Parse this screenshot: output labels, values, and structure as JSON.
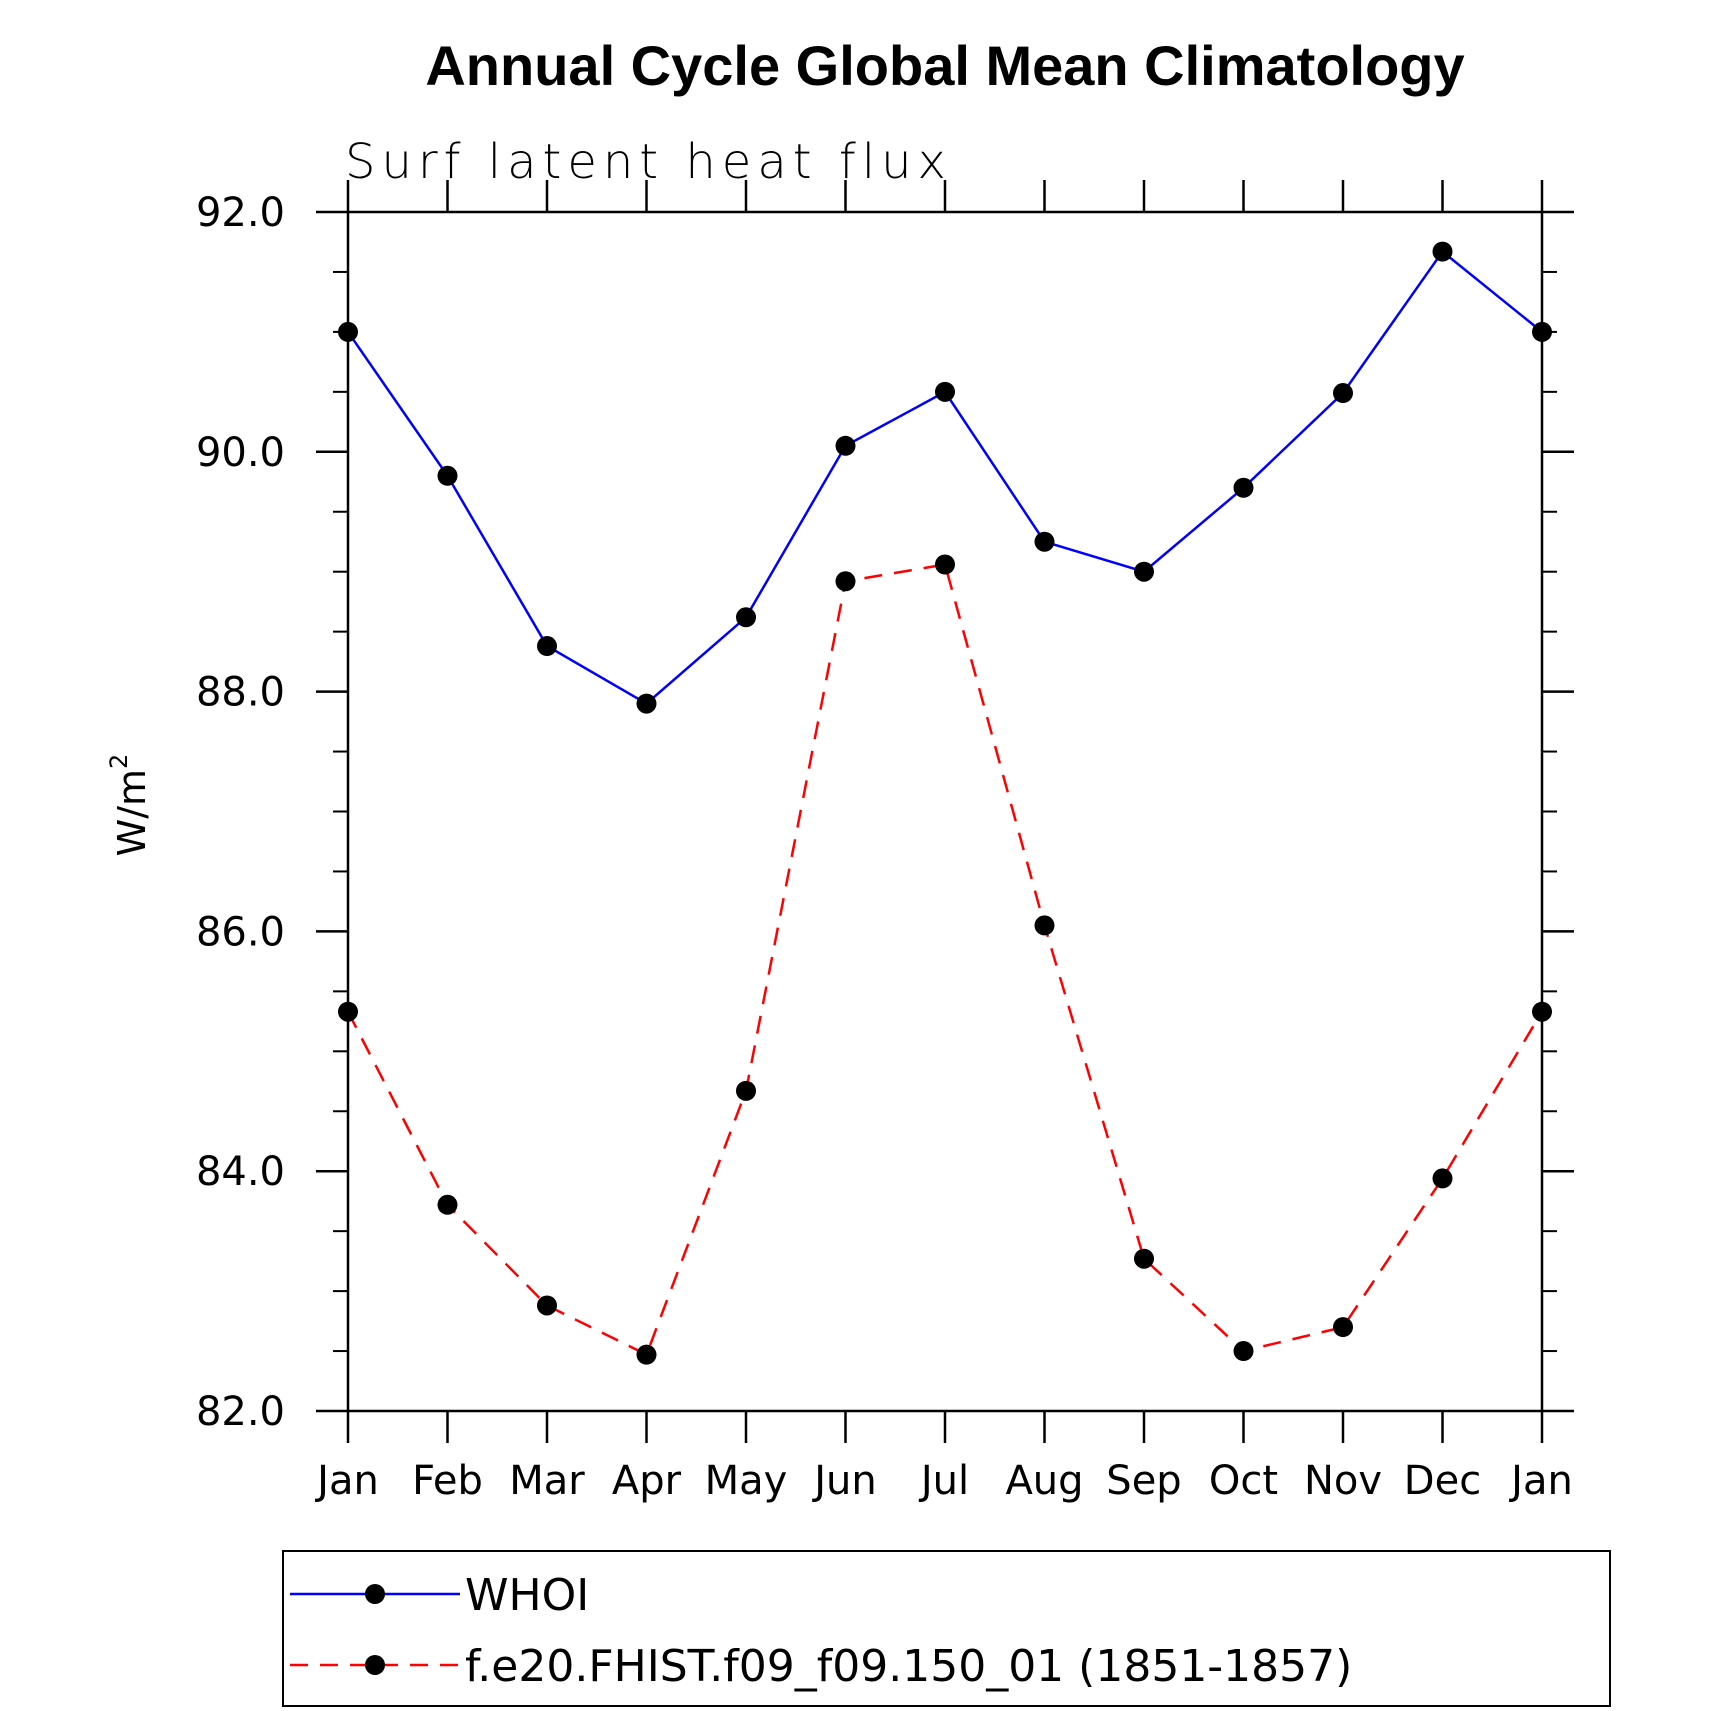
{
  "chart_data": {
    "type": "line",
    "title": "Annual Cycle Global Mean Climatology",
    "subtitle": "Surf latent heat flux",
    "xlabel": "",
    "ylabel": "W/m",
    "ylabel_superscript": "2",
    "categories": [
      "Jan",
      "Feb",
      "Mar",
      "Apr",
      "May",
      "Jun",
      "Jul",
      "Aug",
      "Sep",
      "Oct",
      "Nov",
      "Dec",
      "Jan"
    ],
    "ylim": [
      82.0,
      92.0
    ],
    "yticks": [
      "82.0",
      "84.0",
      "86.0",
      "88.0",
      "90.0",
      "92.0"
    ],
    "ytick_values": [
      82,
      84,
      86,
      88,
      90,
      92
    ],
    "series": [
      {
        "name": "WHOI",
        "color": "#0000ff",
        "dash": "solid",
        "values": [
          91.0,
          89.8,
          88.38,
          87.9,
          88.62,
          90.05,
          90.5,
          89.25,
          89.0,
          89.7,
          90.49,
          91.67,
          91.0
        ]
      },
      {
        "name": "f.e20.FHIST.f09_f09.150_01 (1851-1857)",
        "color": "#ff0000",
        "dash": "dashed",
        "values": [
          85.33,
          83.72,
          82.88,
          82.47,
          84.67,
          88.92,
          89.06,
          86.05,
          83.27,
          82.5,
          82.7,
          83.94,
          85.33
        ]
      }
    ],
    "legend_position": "bottom"
  }
}
